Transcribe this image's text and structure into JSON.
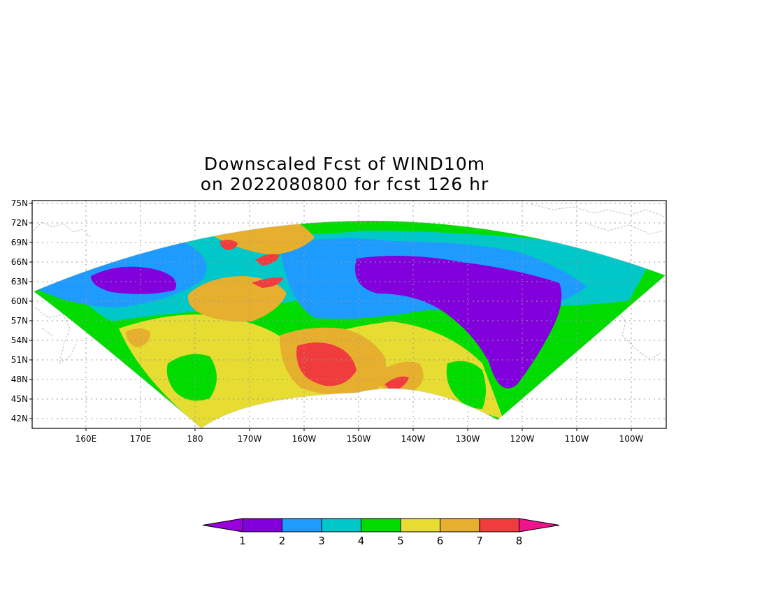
{
  "title": {
    "line1": "Downscaled Fcst of WIND10m",
    "line2": "on 2022080800 for fcst 126 hr"
  },
  "map": {
    "lon_range": [
      -190,
      -95
    ],
    "lat_range": [
      41,
      75
    ],
    "lat_ticks": [
      {
        "value": 75,
        "label": "75N"
      },
      {
        "value": 72,
        "label": "72N"
      },
      {
        "value": 69,
        "label": "69N"
      },
      {
        "value": 66,
        "label": "66N"
      },
      {
        "value": 63,
        "label": "63N"
      },
      {
        "value": 60,
        "label": "60N"
      },
      {
        "value": 57,
        "label": "57N"
      },
      {
        "value": 54,
        "label": "54N"
      },
      {
        "value": 51,
        "label": "51N"
      },
      {
        "value": 48,
        "label": "48N"
      },
      {
        "value": 45,
        "label": "45N"
      },
      {
        "value": 42,
        "label": "42N"
      }
    ],
    "lon_ticks": [
      {
        "value": -200,
        "label": "160E"
      },
      {
        "value": -190,
        "label": "170E"
      },
      {
        "value": -180,
        "label": "180"
      },
      {
        "value": -170,
        "label": "170W"
      },
      {
        "value": -160,
        "label": "160W"
      },
      {
        "value": -150,
        "label": "150W"
      },
      {
        "value": -140,
        "label": "140W"
      },
      {
        "value": -130,
        "label": "130W"
      },
      {
        "value": -120,
        "label": "120W"
      },
      {
        "value": -110,
        "label": "110W"
      },
      {
        "value": -100,
        "label": "100W"
      }
    ]
  },
  "colorbar": {
    "colors": [
      "#9a00dc",
      "#8200dc",
      "#1e9bff",
      "#00c8c8",
      "#00dc00",
      "#e6dc32",
      "#e6af2d",
      "#f03c3c",
      "#f0148c"
    ],
    "labels": [
      "1",
      "2",
      "3",
      "4",
      "5",
      "6",
      "7",
      "8"
    ]
  }
}
